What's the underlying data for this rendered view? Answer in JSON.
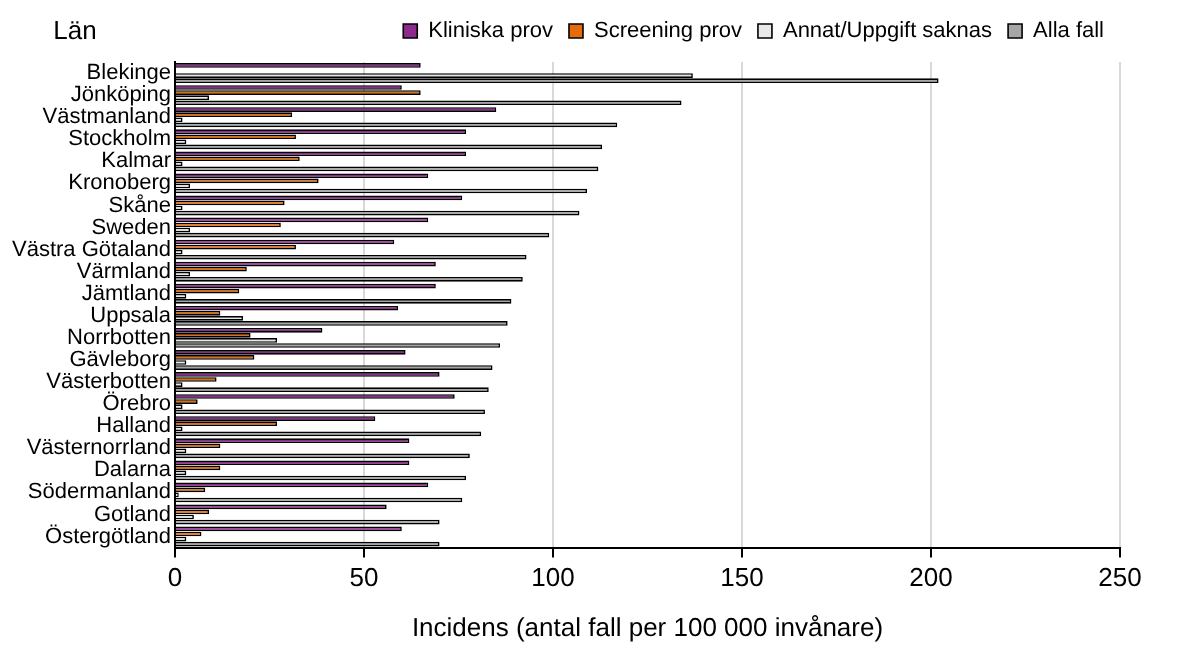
{
  "chart_data": {
    "type": "bar",
    "orientation": "horizontal",
    "ylabel": "Län",
    "xlabel": "Incidens (antal fall per 100 000 invånare)",
    "categories": [
      "Blekinge",
      "Jönköping",
      "Västmanland",
      "Stockholm",
      "Kalmar",
      "Kronoberg",
      "Skåne",
      "Sweden",
      "Västra Götaland",
      "Värmland",
      "Jämtland",
      "Uppsala",
      "Norrbotten",
      "Gävleborg",
      "Västerbotten",
      "Örebro",
      "Halland",
      "Västernorrland",
      "Dalarna",
      "Södermanland",
      "Gotland",
      "Östergötland"
    ],
    "series": [
      {
        "name": "Kliniska prov",
        "color": "#8e2a8e",
        "values": [
          65,
          60,
          85,
          77,
          77,
          67,
          76,
          67,
          58,
          69,
          69,
          59,
          39,
          61,
          70,
          74,
          53,
          62,
          62,
          67,
          56,
          60
        ]
      },
      {
        "name": "Screening prov",
        "color": "#e46c0a",
        "values": [
          0,
          65,
          31,
          32,
          33,
          38,
          29,
          28,
          32,
          19,
          17,
          12,
          20,
          21,
          11,
          6,
          27,
          12,
          12,
          8,
          9,
          7
        ]
      },
      {
        "name": "Annat/Uppgift saknas",
        "color": "#e8e8e8",
        "values": [
          137,
          9,
          2,
          3,
          2,
          4,
          2,
          4,
          2,
          4,
          3,
          18,
          27,
          3,
          2,
          2,
          2,
          3,
          3,
          1,
          5,
          3
        ]
      },
      {
        "name": "Alla fall",
        "color": "#a6a6a6",
        "values": [
          202,
          134,
          117,
          113,
          112,
          109,
          107,
          99,
          93,
          92,
          89,
          88,
          86,
          84,
          83,
          82,
          81,
          78,
          77,
          76,
          70,
          70
        ]
      }
    ],
    "xlim": [
      0,
      250
    ],
    "xticks": [
      0,
      50,
      100,
      150,
      200,
      250
    ],
    "grid": "x",
    "legend": "top right"
  }
}
